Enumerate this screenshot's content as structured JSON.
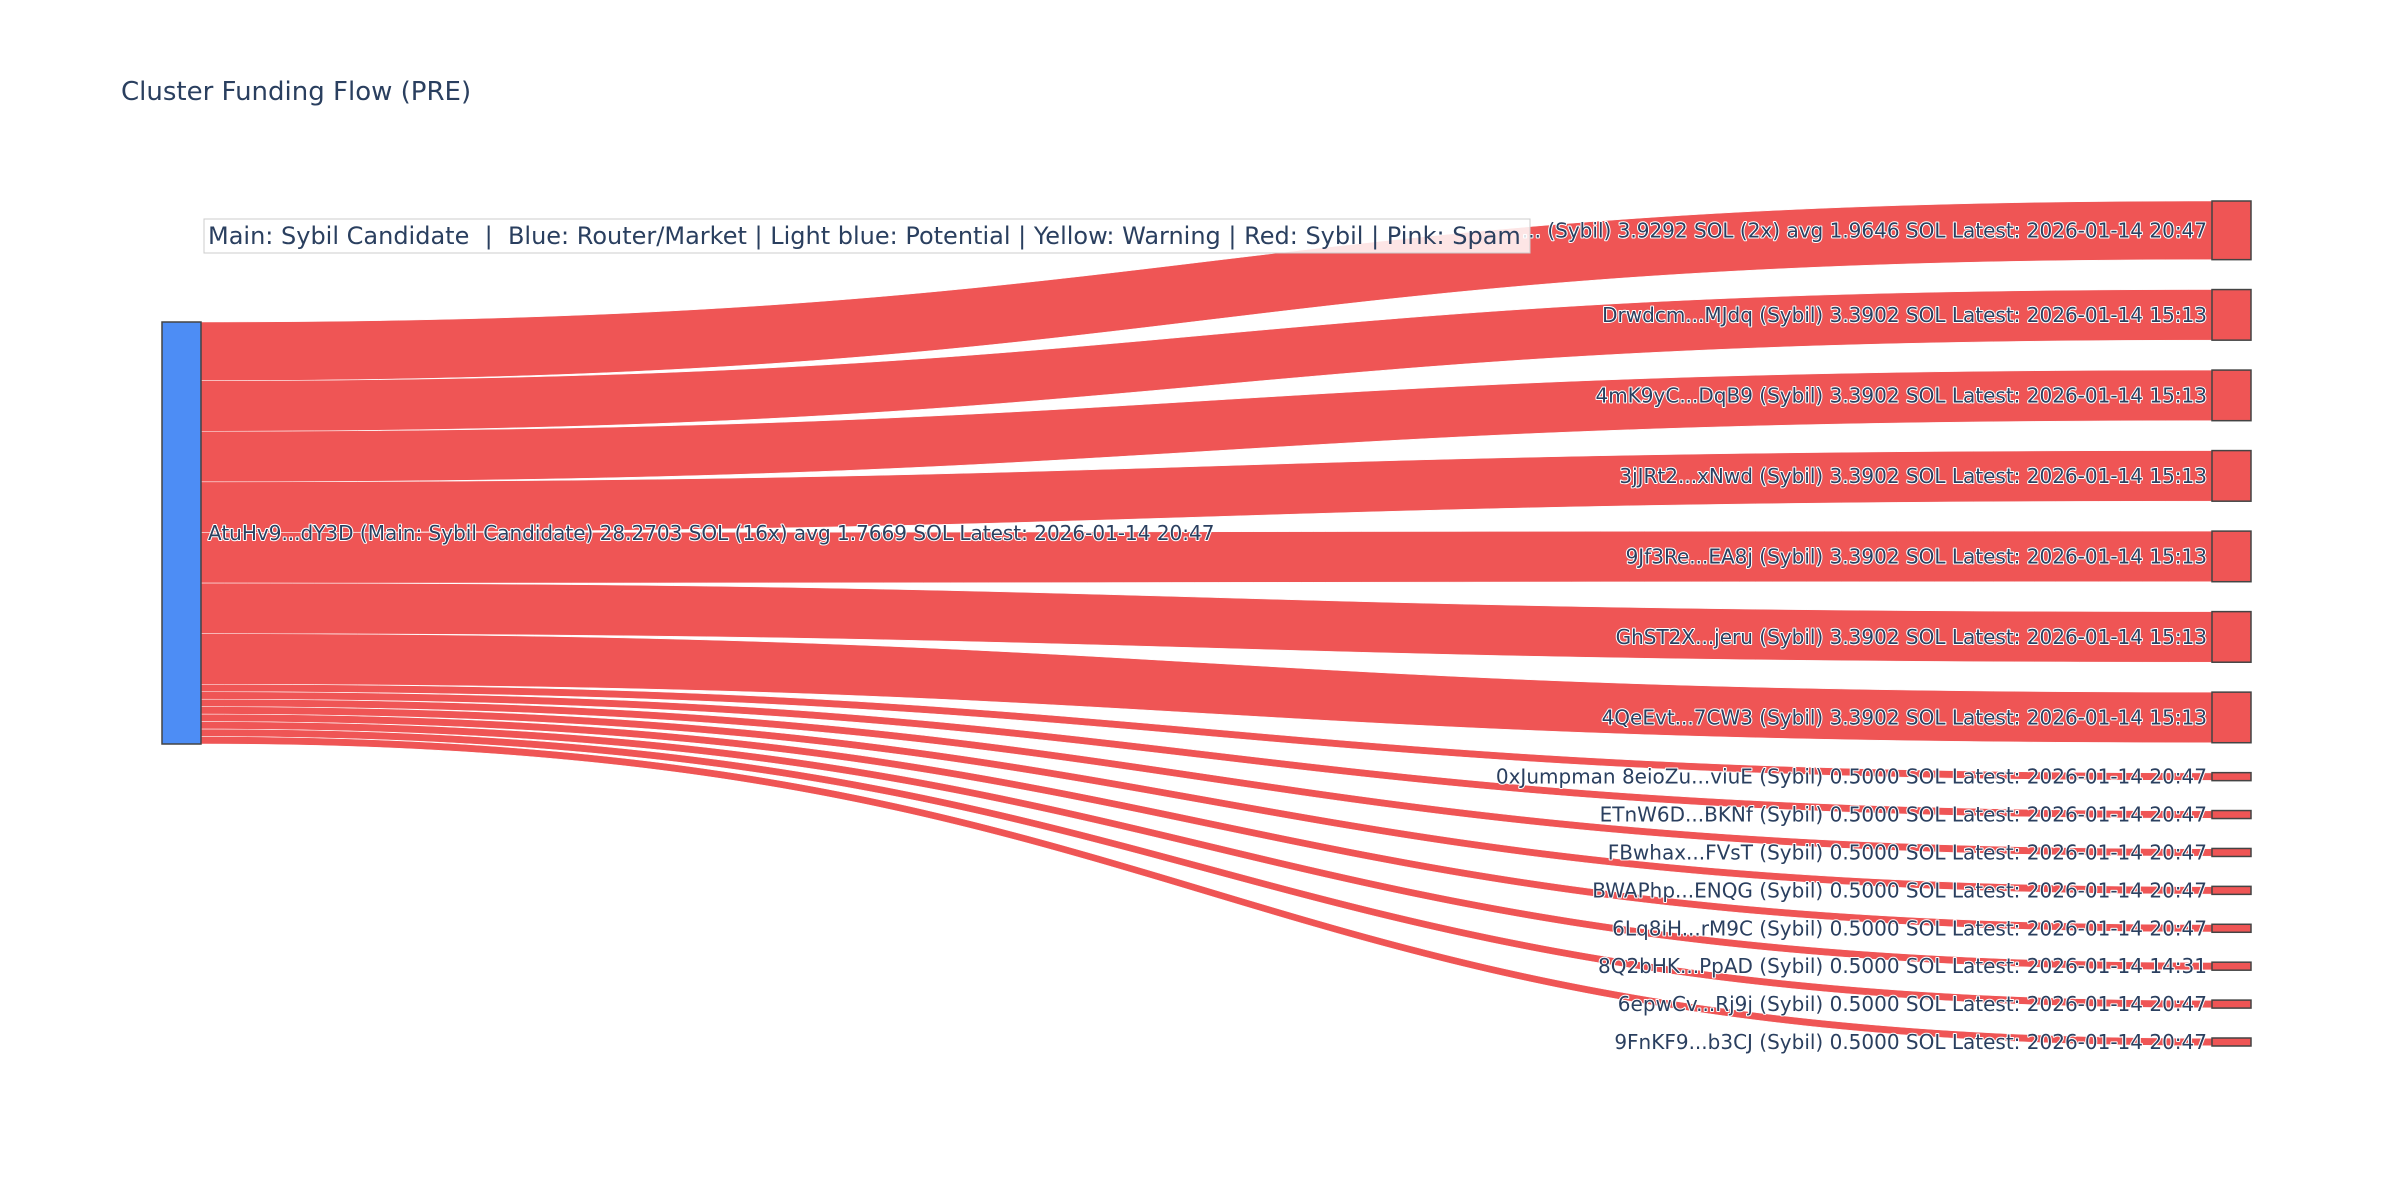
{
  "chart_data": {
    "type": "sankey",
    "title": "Cluster Funding Flow (PRE)",
    "legend_text": "Main: Sybil Candidate  |  Blue: Router/Market | Light blue: Potential | Yellow: Warning | Red: Sybil | Pink: Spam",
    "colors": {
      "source_node": "#4d8df5",
      "target_node": "#ef5555",
      "link": "#ef5555",
      "node_border": "#444444"
    },
    "source": {
      "label": "AtuHv9...dY3D (Main: Sybil Candidate) 28.2703 SOL (16x) avg 1.7669 SOL Latest: 2026-01-14 20:47",
      "total": 28.2703
    },
    "targets": [
      {
        "label": "... (Sybil) 3.9292 SOL (2x) avg 1.9646 SOL Latest: 2026-01-14 20:47",
        "value": 3.9292
      },
      {
        "label": "Drwdcm...MJdq (Sybil) 3.3902 SOL Latest: 2026-01-14 15:13",
        "value": 3.3902
      },
      {
        "label": "4mK9yC...DqB9 (Sybil) 3.3902 SOL Latest: 2026-01-14 15:13",
        "value": 3.3902
      },
      {
        "label": "3jJRt2...xNwd (Sybil) 3.3902 SOL Latest: 2026-01-14 15:13",
        "value": 3.3902
      },
      {
        "label": "9Jf3Re...EA8j (Sybil) 3.3902 SOL Latest: 2026-01-14 15:13",
        "value": 3.3902
      },
      {
        "label": "GhST2X...jeru (Sybil) 3.3902 SOL Latest: 2026-01-14 15:13",
        "value": 3.3902
      },
      {
        "label": "4QeEvt...7CW3 (Sybil) 3.3902 SOL Latest: 2026-01-14 15:13",
        "value": 3.3902
      },
      {
        "label": "0xJumpman 8eioZu...viuE (Sybil) 0.5000 SOL Latest: 2026-01-14 20:47",
        "value": 0.5
      },
      {
        "label": "ETnW6D...BKNf (Sybil) 0.5000 SOL Latest: 2026-01-14 20:47",
        "value": 0.5
      },
      {
        "label": "FBwhax...FVsT (Sybil) 0.5000 SOL Latest: 2026-01-14 20:47",
        "value": 0.5
      },
      {
        "label": "BWAPhp...ENQG (Sybil) 0.5000 SOL Latest: 2026-01-14 20:47",
        "value": 0.5
      },
      {
        "label": "6Lq8iH...rM9C (Sybil) 0.5000 SOL Latest: 2026-01-14 20:47",
        "value": 0.5
      },
      {
        "label": "8Q2bHK...PpAD (Sybil) 0.5000 SOL Latest: 2026-01-14 14:31",
        "value": 0.5
      },
      {
        "label": "6epwCv...Rj9j (Sybil) 0.5000 SOL Latest: 2026-01-14 20:47",
        "value": 0.5
      },
      {
        "label": "9FnKF9...b3CJ (Sybil) 0.5000 SOL Latest: 2026-01-14 20:47",
        "value": 0.5
      }
    ]
  }
}
